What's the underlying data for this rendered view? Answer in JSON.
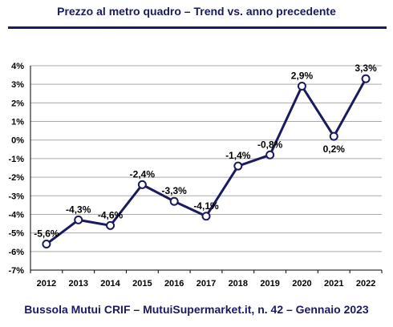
{
  "header": {
    "title": "Prezzo al metro quadro – Trend vs. anno precedente"
  },
  "footer": {
    "source": "Bussola Mutui CRIF – MutuiSupermarket.it, n. 42 – Gennaio 2023"
  },
  "colors": {
    "line": "#1a1a5e",
    "grid": "#aaaaaa",
    "text": "#1a1a5e"
  },
  "chart_data": {
    "type": "line",
    "title": "Prezzo al metro quadro – Trend vs. anno precedente",
    "xlabel": "",
    "ylabel": "",
    "categories": [
      "2012",
      "2013",
      "2014",
      "2015",
      "2016",
      "2017",
      "2018",
      "2019",
      "2020",
      "2021",
      "2022"
    ],
    "series": [
      {
        "values": [
          -5.6,
          -4.3,
          -4.6,
          -2.4,
          -3.3,
          -4.1,
          -1.4,
          -0.8,
          2.9,
          0.2,
          3.3
        ],
        "labels": [
          "-5,6%",
          "-4,3%",
          "-4,6%",
          "-2,4%",
          "-3,3%",
          "-4,1%",
          "-1,4%",
          "-0,8%",
          "2,9%",
          "0,2%",
          "3,3%"
        ],
        "label_position": [
          "above",
          "above",
          "above",
          "above",
          "above",
          "above",
          "above",
          "above",
          "above",
          "below",
          "above"
        ]
      }
    ],
    "ylim": [
      -7,
      4
    ],
    "yticks": [
      4,
      3,
      2,
      1,
      0,
      -1,
      -2,
      -3,
      -4,
      -5,
      -6,
      -7
    ],
    "ytick_labels": [
      "4%",
      "3%",
      "2%",
      "1%",
      "0%",
      "-1%",
      "-2%",
      "-3%",
      "-4%",
      "-5%",
      "-6%",
      "-7%"
    ],
    "grid": true,
    "legend": "none"
  }
}
